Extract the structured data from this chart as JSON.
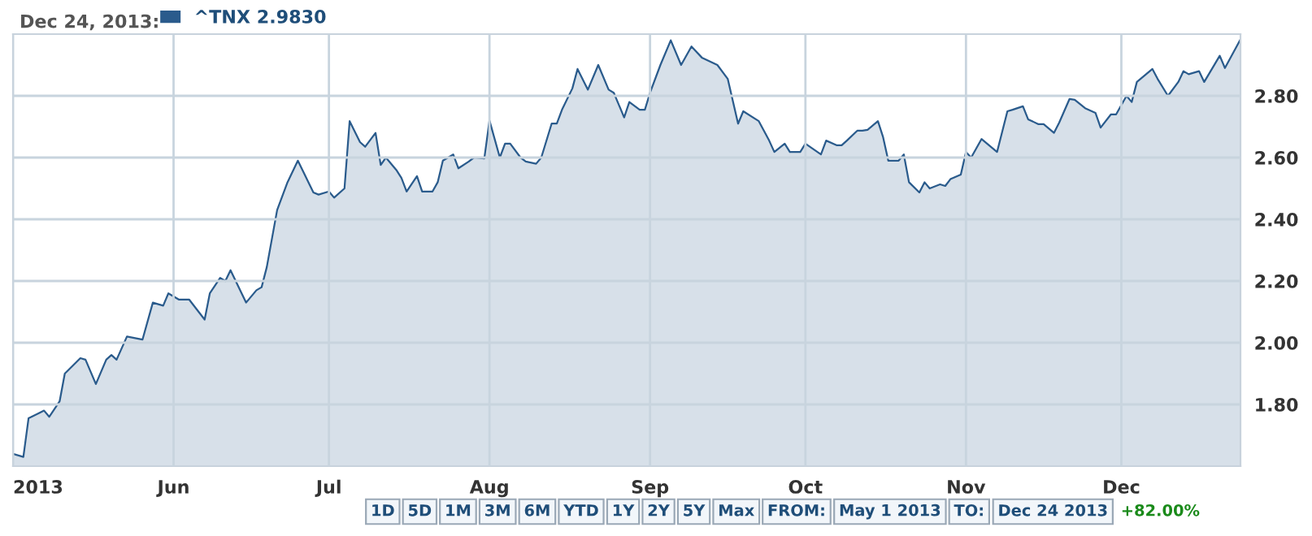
{
  "chart_data": {
    "type": "area",
    "title": "Dec 24, 2013:",
    "legend": "top left",
    "grid": true,
    "marker": "none",
    "line_style": "solid",
    "x": [
      "2013-05-01",
      "2013-05-03",
      "2013-05-04",
      "2013-05-07",
      "2013-05-08",
      "2013-05-10",
      "2013-05-11",
      "2013-05-14",
      "2013-05-15",
      "2013-05-17",
      "2013-05-19",
      "2013-05-20",
      "2013-05-21",
      "2013-05-23",
      "2013-05-26",
      "2013-05-28",
      "2013-05-30",
      "2013-05-31",
      "2013-06-02",
      "2013-06-04",
      "2013-06-07",
      "2013-06-08",
      "2013-06-10",
      "2013-06-11",
      "2013-06-12",
      "2013-06-15",
      "2013-06-17",
      "2013-06-18",
      "2013-06-19",
      "2013-06-21",
      "2013-06-23",
      "2013-06-25",
      "2013-06-28",
      "2013-06-29",
      "2013-07-01",
      "2013-07-02",
      "2013-07-04",
      "2013-07-05",
      "2013-07-07",
      "2013-07-08",
      "2013-07-10",
      "2013-07-11",
      "2013-07-12",
      "2013-07-14",
      "2013-07-15",
      "2013-07-16",
      "2013-07-18",
      "2013-07-19",
      "2013-07-21",
      "2013-07-22",
      "2013-07-23",
      "2013-07-25",
      "2013-07-26",
      "2013-07-28",
      "2013-07-29",
      "2013-07-31",
      "2013-08-01",
      "2013-08-03",
      "2013-08-04",
      "2013-08-05",
      "2013-08-07",
      "2013-08-08",
      "2013-08-10",
      "2013-08-11",
      "2013-08-13",
      "2013-08-14",
      "2013-08-15",
      "2013-08-17",
      "2013-08-18",
      "2013-08-20",
      "2013-08-22",
      "2013-08-24",
      "2013-08-25",
      "2013-08-27",
      "2013-08-28",
      "2013-08-30",
      "2013-08-31",
      "2013-09-01",
      "2013-09-03",
      "2013-09-05",
      "2013-09-07",
      "2013-09-09",
      "2013-09-11",
      "2013-09-14",
      "2013-09-16",
      "2013-09-18",
      "2013-09-19",
      "2013-09-22",
      "2013-09-24",
      "2013-09-25",
      "2013-09-27",
      "2013-09-28",
      "2013-09-30",
      "2013-10-01",
      "2013-10-04",
      "2013-10-05",
      "2013-10-07",
      "2013-10-08",
      "2013-10-09",
      "2013-10-11",
      "2013-10-12",
      "2013-10-13",
      "2013-10-15",
      "2013-10-16",
      "2013-10-17",
      "2013-10-19",
      "2013-10-20",
      "2013-10-21",
      "2013-10-23",
      "2013-10-24",
      "2013-10-25",
      "2013-10-27",
      "2013-10-28",
      "2013-10-29",
      "2013-10-31",
      "2013-11-01",
      "2013-11-02",
      "2013-11-04",
      "2013-11-07",
      "2013-11-09",
      "2013-11-10",
      "2013-11-12",
      "2013-11-13",
      "2013-11-15",
      "2013-11-16",
      "2013-11-18",
      "2013-11-19",
      "2013-11-21",
      "2013-11-22",
      "2013-11-24",
      "2013-11-26",
      "2013-11-27",
      "2013-11-29",
      "2013-11-30",
      "2013-12-02",
      "2013-12-03",
      "2013-12-04",
      "2013-12-07",
      "2013-12-08",
      "2013-12-10",
      "2013-12-12",
      "2013-12-13",
      "2013-12-14",
      "2013-12-16",
      "2013-12-17",
      "2013-12-20",
      "2013-12-21",
      "2013-12-24"
    ],
    "series": [
      {
        "name": "^TNX 2.9830",
        "color": "#2a5b8c",
        "values": [
          1.64,
          1.63,
          1.755,
          1.78,
          1.76,
          1.81,
          1.9,
          1.95,
          1.945,
          1.866,
          1.945,
          1.96,
          1.945,
          2.02,
          2.01,
          2.13,
          2.12,
          2.16,
          2.14,
          2.14,
          2.075,
          2.16,
          2.21,
          2.2,
          2.235,
          2.13,
          2.17,
          2.18,
          2.245,
          2.43,
          2.52,
          2.59,
          2.487,
          2.48,
          2.49,
          2.47,
          2.5,
          2.718,
          2.65,
          2.635,
          2.68,
          2.576,
          2.6,
          2.56,
          2.534,
          2.49,
          2.54,
          2.49,
          2.49,
          2.52,
          2.59,
          2.61,
          2.565,
          2.587,
          2.6,
          2.597,
          2.72,
          2.6,
          2.645,
          2.645,
          2.6,
          2.587,
          2.58,
          2.6,
          2.71,
          2.71,
          2.755,
          2.824,
          2.887,
          2.82,
          2.9,
          2.82,
          2.81,
          2.73,
          2.78,
          2.755,
          2.755,
          2.81,
          2.9,
          2.98,
          2.9,
          2.96,
          2.924,
          2.9,
          2.855,
          2.71,
          2.75,
          2.718,
          2.655,
          2.618,
          2.645,
          2.618,
          2.618,
          2.645,
          2.61,
          2.655,
          2.64,
          2.64,
          2.655,
          2.687,
          2.687,
          2.69,
          2.718,
          2.666,
          2.59,
          2.59,
          2.61,
          2.52,
          2.487,
          2.52,
          2.5,
          2.513,
          2.508,
          2.53,
          2.545,
          2.618,
          2.6,
          2.66,
          2.618,
          2.75,
          2.755,
          2.766,
          2.724,
          2.708,
          2.708,
          2.68,
          2.713,
          2.79,
          2.787,
          2.76,
          2.745,
          2.697,
          2.74,
          2.74,
          2.8,
          2.78,
          2.845,
          2.887,
          2.855,
          2.8,
          2.845,
          2.88,
          2.87,
          2.88,
          2.845,
          2.93,
          2.89,
          2.983
        ]
      }
    ],
    "xlim": [
      "2013-05-01",
      "2013-12-24"
    ],
    "xticks": [
      {
        "value": "2013-05-01",
        "label": "2013"
      },
      {
        "value": "2013-06-01",
        "label": "Jun"
      },
      {
        "value": "2013-07-01",
        "label": "Jul"
      },
      {
        "value": "2013-08-01",
        "label": "Aug"
      },
      {
        "value": "2013-09-01",
        "label": "Sep"
      },
      {
        "value": "2013-10-01",
        "label": "Oct"
      },
      {
        "value": "2013-11-01",
        "label": "Nov"
      },
      {
        "value": "2013-12-01",
        "label": "Dec"
      }
    ],
    "ylim": [
      1.6,
      3.0
    ],
    "yticks": [
      {
        "value": 1.8,
        "label": "1.80"
      },
      {
        "value": 2.0,
        "label": "2.00"
      },
      {
        "value": 2.2,
        "label": "2.20"
      },
      {
        "value": 2.4,
        "label": "2.40"
      },
      {
        "value": 2.6,
        "label": "2.60"
      },
      {
        "value": 2.8,
        "label": "2.80"
      }
    ],
    "annotations": [
      "1D",
      "5D",
      "1M",
      "3M",
      "6M",
      "YTD",
      "1Y",
      "2Y",
      "5Y",
      "Max",
      "FROM:",
      "May 1 2013",
      "TO:",
      "Dec 24 2013",
      "+82.00%"
    ]
  }
}
